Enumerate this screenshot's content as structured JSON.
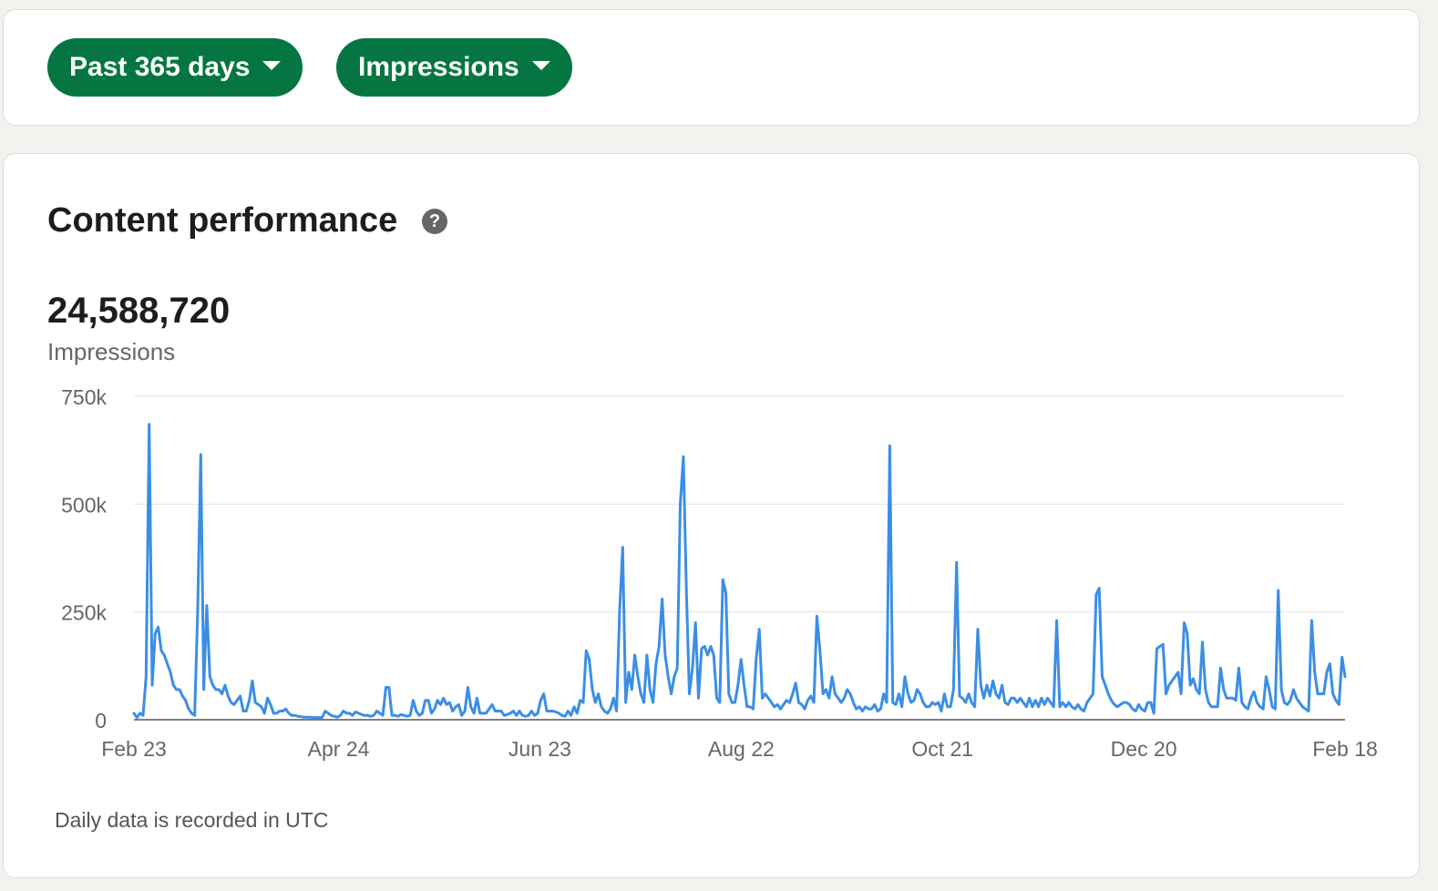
{
  "filters": {
    "range_label": "Past 365 days",
    "metric_label": "Impressions"
  },
  "card": {
    "title": "Content performance",
    "help_icon": "question-circle-icon",
    "total_value": "24,588,720",
    "total_label": "Impressions",
    "footnote": "Daily data is recorded in UTC"
  },
  "colors": {
    "accent": "#057642",
    "line": "#3b8ee6"
  },
  "chart_data": {
    "type": "line",
    "title": "",
    "xlabel": "",
    "ylabel": "",
    "ylim": [
      0,
      750000
    ],
    "y_ticks": [
      0,
      250000,
      500000,
      750000
    ],
    "y_tick_labels": [
      "0",
      "250k",
      "500k",
      "750k"
    ],
    "x_range": [
      "2024-02-23",
      "2025-02-18"
    ],
    "x_ticks": [
      "2024-02-23",
      "2024-04-24",
      "2024-06-23",
      "2024-08-22",
      "2024-10-21",
      "2024-12-20",
      "2025-02-18"
    ],
    "x_tick_labels": [
      "Feb 23",
      "Apr 24",
      "Jun 23",
      "Aug 22",
      "Oct 21",
      "Dec 20",
      "Feb 18"
    ],
    "grid": true,
    "series": [
      {
        "values": [
          15000,
          5000,
          15000,
          10000,
          100000,
          685000,
          80000,
          200000,
          215000,
          160000,
          150000,
          130000,
          110000,
          80000,
          70000,
          70000,
          55000,
          45000,
          25000,
          15000,
          10000,
          250000,
          615000,
          70000,
          265000,
          100000,
          80000,
          70000,
          70000,
          60000,
          80000,
          55000,
          40000,
          35000,
          45000,
          55000,
          20000,
          20000,
          45000,
          90000,
          40000,
          35000,
          30000,
          15000,
          50000,
          35000,
          15000,
          15000,
          20000,
          20000,
          25000,
          15000,
          10000,
          10000,
          8000,
          7000,
          6000,
          6000,
          6000,
          5000,
          5000,
          5000,
          5000,
          20000,
          15000,
          10000,
          8000,
          6000,
          10000,
          20000,
          15000,
          15000,
          10000,
          18000,
          15000,
          12000,
          10000,
          10000,
          8000,
          10000,
          20000,
          15000,
          10000,
          75000,
          75000,
          10000,
          10000,
          8000,
          12000,
          10000,
          8000,
          10000,
          45000,
          20000,
          10000,
          15000,
          45000,
          45000,
          15000,
          25000,
          45000,
          35000,
          50000,
          35000,
          40000,
          20000,
          30000,
          35000,
          10000,
          20000,
          75000,
          30000,
          15000,
          50000,
          15000,
          15000,
          15000,
          25000,
          35000,
          20000,
          20000,
          20000,
          10000,
          12000,
          15000,
          20000,
          10000,
          20000,
          10000,
          8000,
          10000,
          20000,
          10000,
          15000,
          45000,
          60000,
          20000,
          20000,
          20000,
          18000,
          15000,
          10000,
          8000,
          20000,
          10000,
          30000,
          15000,
          45000,
          40000,
          160000,
          140000,
          70000,
          40000,
          60000,
          30000,
          20000,
          15000,
          25000,
          50000,
          20000,
          250000,
          400000,
          40000,
          110000,
          70000,
          150000,
          100000,
          60000,
          40000,
          150000,
          70000,
          40000,
          130000,
          170000,
          280000,
          150000,
          100000,
          60000,
          100000,
          120000,
          500000,
          610000,
          300000,
          60000,
          120000,
          225000,
          50000,
          165000,
          170000,
          150000,
          170000,
          150000,
          50000,
          40000,
          325000,
          295000,
          60000,
          40000,
          40000,
          80000,
          140000,
          80000,
          30000,
          30000,
          25000,
          140000,
          210000,
          50000,
          60000,
          50000,
          40000,
          30000,
          35000,
          25000,
          35000,
          45000,
          40000,
          60000,
          85000,
          40000,
          35000,
          25000,
          45000,
          55000,
          40000,
          240000,
          160000,
          60000,
          70000,
          50000,
          100000,
          60000,
          50000,
          40000,
          50000,
          70000,
          60000,
          40000,
          25000,
          30000,
          20000,
          30000,
          25000,
          25000,
          35000,
          20000,
          25000,
          60000,
          40000,
          635000,
          40000,
          35000,
          60000,
          30000,
          100000,
          60000,
          40000,
          45000,
          70000,
          60000,
          40000,
          30000,
          30000,
          40000,
          35000,
          40000,
          20000,
          60000,
          30000,
          30000,
          70000,
          365000,
          55000,
          50000,
          40000,
          60000,
          40000,
          30000,
          210000,
          80000,
          50000,
          80000,
          55000,
          90000,
          60000,
          50000,
          80000,
          40000,
          35000,
          50000,
          50000,
          40000,
          50000,
          40000,
          30000,
          50000,
          30000,
          45000,
          30000,
          50000,
          35000,
          50000,
          40000,
          30000,
          230000,
          30000,
          40000,
          30000,
          40000,
          30000,
          25000,
          35000,
          25000,
          20000,
          40000,
          50000,
          60000,
          290000,
          305000,
          100000,
          80000,
          60000,
          45000,
          35000,
          30000,
          35000,
          40000,
          40000,
          35000,
          25000,
          20000,
          35000,
          25000,
          20000,
          40000,
          40000,
          15000,
          165000,
          170000,
          175000,
          60000,
          80000,
          90000,
          100000,
          110000,
          60000,
          225000,
          200000,
          80000,
          95000,
          70000,
          60000,
          180000,
          70000,
          40000,
          30000,
          30000,
          30000,
          120000,
          70000,
          50000,
          50000,
          50000,
          45000,
          120000,
          40000,
          30000,
          25000,
          50000,
          65000,
          40000,
          30000,
          25000,
          100000,
          70000,
          30000,
          25000,
          300000,
          70000,
          40000,
          35000,
          45000,
          70000,
          50000,
          40000,
          30000,
          25000,
          20000,
          230000,
          110000,
          60000,
          60000,
          60000,
          110000,
          130000,
          60000,
          45000,
          35000,
          145000,
          100000
        ]
      }
    ]
  }
}
